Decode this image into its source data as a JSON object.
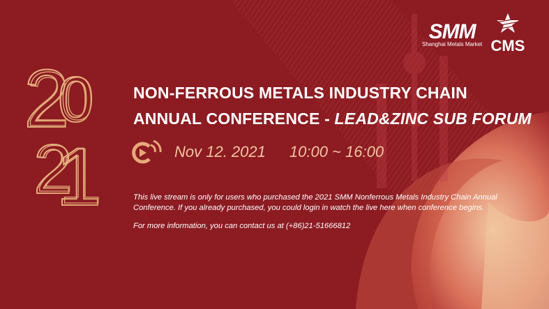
{
  "colors": {
    "background": "#8c1b22",
    "gold": "#e8b07c",
    "accent_text": "#f1c6a0"
  },
  "logos": {
    "smm": {
      "mark": "SMM",
      "subtitle": "Shanghai Metals Market"
    },
    "cms": {
      "mark": "CMS",
      "icon": "star-icon"
    }
  },
  "year_graphic": "2021",
  "title": {
    "line1": "NON-FERROUS METALS INDUSTRY CHAIN",
    "line2_prefix": "ANNUAL CONFERENCE - ",
    "line2_italic": "LEAD&ZINC SUB FORUM"
  },
  "event": {
    "icon": "live-stream-icon",
    "date": "Nov 12. 2021",
    "time": "10:00 ~ 16:00"
  },
  "notice": {
    "line1": "This live stream is only for users who purchased the 2021 SMM Nonferrous Metals Industry Chain Annual",
    "line2": "Conference. If you already purchased, you could login in watch the live here when conference begins."
  },
  "contact": "For more information, you can contact us at (+86)21-51666812"
}
